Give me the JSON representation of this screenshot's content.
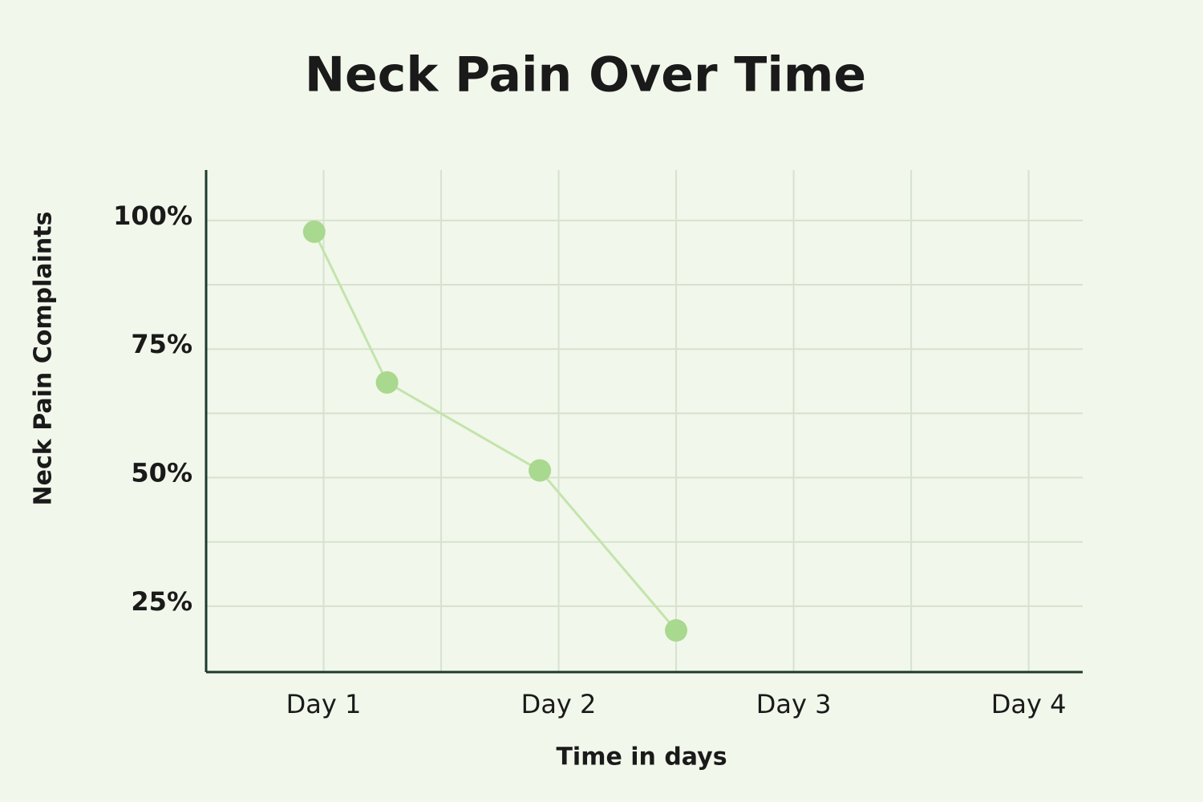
{
  "chart_data": {
    "type": "line",
    "title": "Neck Pain Over Time",
    "x_label": "Time in days",
    "y_label": "Neck Pain Complaints",
    "x": [
      0.96,
      1.27,
      1.92,
      2.5
    ],
    "values": [
      97.8,
      68.5,
      51.4,
      20.3
    ],
    "color": "#c3e4ad",
    "marker_color": "#a9d88f",
    "xlim": [
      0.5,
      4.23
    ],
    "ylim": [
      12.2,
      109.8
    ],
    "xticks": [
      {
        "value": 1,
        "label": "Day 1"
      },
      {
        "value": 2,
        "label": "Day 2"
      },
      {
        "value": 3,
        "label": "Day 3"
      },
      {
        "value": 4,
        "label": "Day 4"
      }
    ],
    "yticks": [
      {
        "value": 25,
        "label": "25%"
      },
      {
        "value": 50,
        "label": "50%"
      },
      {
        "value": 75,
        "label": "75%"
      },
      {
        "value": 100,
        "label": "100%"
      }
    ],
    "xgrid": [
      1,
      1.5,
      2,
      2.5,
      3,
      3.5,
      4
    ],
    "ygrid": [
      25,
      37.5,
      50,
      62.5,
      75,
      87.5,
      100
    ],
    "grid": true
  }
}
